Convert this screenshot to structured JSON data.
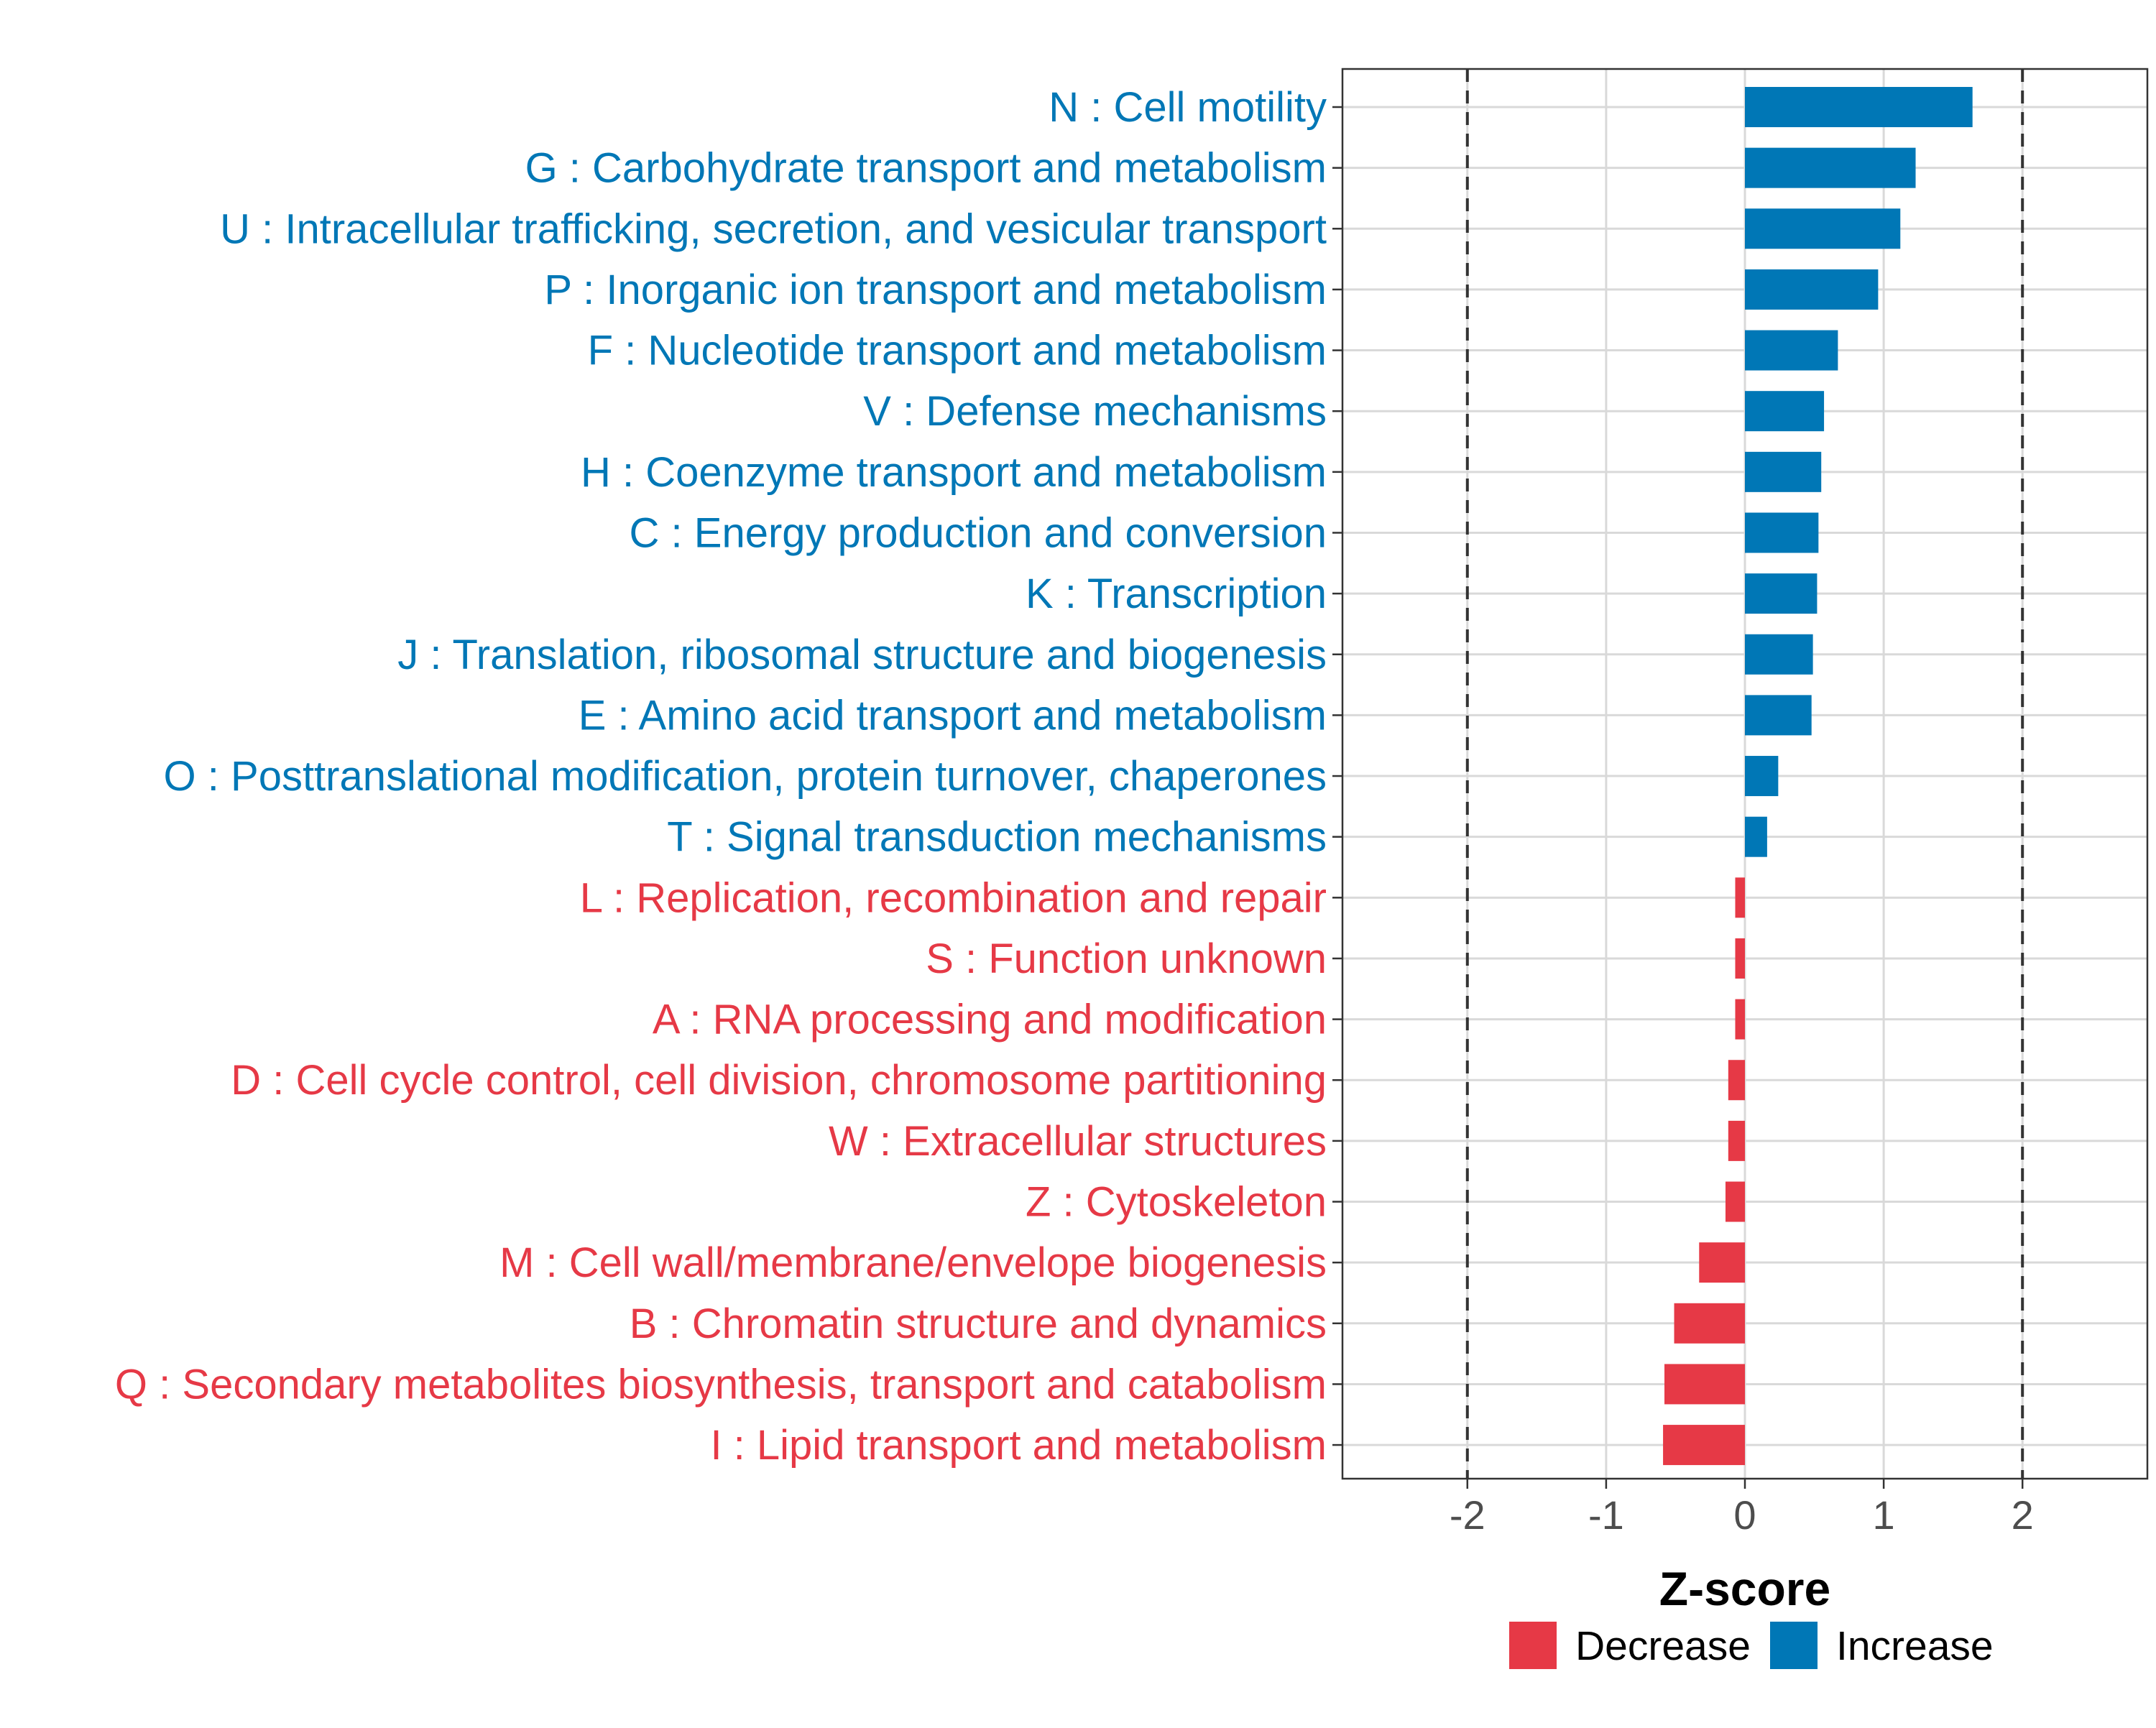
{
  "chart_data": {
    "type": "bar",
    "orientation": "horizontal",
    "xlabel": "Z-score",
    "ylabel": "",
    "xlim": [
      -2.9,
      2.9
    ],
    "xticks": [
      -2,
      -1,
      0,
      1,
      2
    ],
    "xtick_labels": [
      "-2",
      "-1",
      "0",
      "1",
      "2"
    ],
    "reference_lines": [
      -2,
      2
    ],
    "grid": true,
    "legend_position": "bottom",
    "legend": [
      {
        "label": "Decrease",
        "color": "#e63946"
      },
      {
        "label": "Increase",
        "color": "#0077b6"
      }
    ],
    "categories": [
      "N : Cell motility",
      "G : Carbohydrate transport and metabolism",
      "U : Intracellular trafficking, secretion, and vesicular transport",
      "P : Inorganic ion transport and metabolism",
      "F : Nucleotide transport and metabolism",
      "V : Defense mechanisms",
      "H : Coenzyme transport and metabolism",
      "C : Energy production and conversion",
      "K : Transcription",
      "J : Translation, ribosomal structure and biogenesis",
      "E : Amino acid transport and metabolism",
      "O : Posttranslational modification, protein turnover, chaperones",
      "T : Signal transduction mechanisms",
      "L : Replication, recombination and repair",
      "S : Function unknown",
      "A : RNA processing and modification",
      "D : Cell cycle control, cell division, chromosome partitioning",
      "W : Extracellular structures",
      "Z : Cytoskeleton",
      "M : Cell wall/membrane/envelope biogenesis",
      "B : Chromatin structure and dynamics",
      "Q : Secondary metabolites biosynthesis, transport and catabolism",
      "I : Lipid transport and metabolism"
    ],
    "values": [
      1.64,
      1.23,
      1.12,
      0.96,
      0.67,
      0.57,
      0.55,
      0.53,
      0.52,
      0.49,
      0.48,
      0.24,
      0.16,
      -0.07,
      -0.07,
      -0.07,
      -0.12,
      -0.12,
      -0.14,
      -0.33,
      -0.51,
      -0.58,
      -0.59
    ],
    "groups": [
      "Increase",
      "Increase",
      "Increase",
      "Increase",
      "Increase",
      "Increase",
      "Increase",
      "Increase",
      "Increase",
      "Increase",
      "Increase",
      "Increase",
      "Increase",
      "Decrease",
      "Decrease",
      "Decrease",
      "Decrease",
      "Decrease",
      "Decrease",
      "Decrease",
      "Decrease",
      "Decrease",
      "Decrease"
    ]
  }
}
